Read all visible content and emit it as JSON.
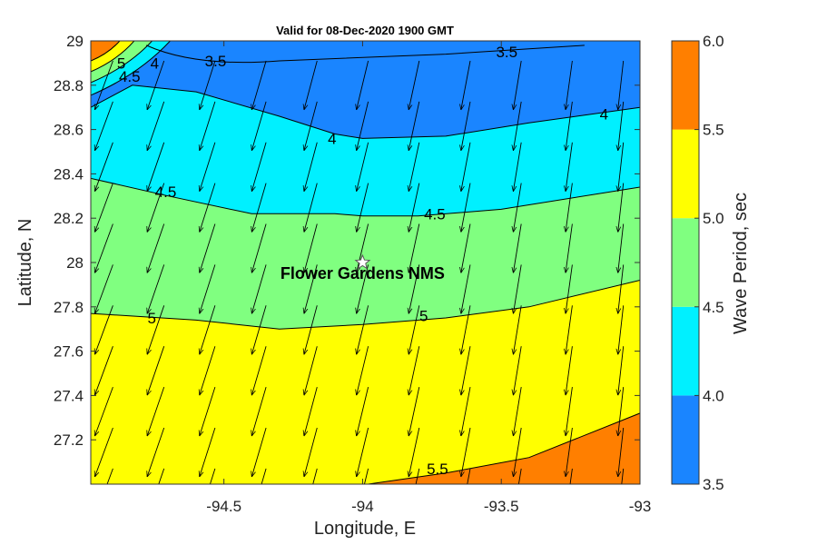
{
  "chart_data": {
    "type": "contour",
    "title": "Valid for 08-Dec-2020 1900 GMT",
    "xlabel": "Longitude, E",
    "ylabel": "Latitude, N",
    "xlim": [
      -94.98,
      -93.0
    ],
    "ylim": [
      27.0,
      29.0
    ],
    "x_ticks": [
      -94.5,
      -94,
      -93.5,
      -93
    ],
    "y_ticks": [
      27.2,
      27.4,
      27.6,
      27.8,
      28,
      28.2,
      28.4,
      28.6,
      28.8,
      29
    ],
    "x_tick_labels": [
      "-94.5",
      "-94",
      "-93.5",
      "-93"
    ],
    "y_tick_labels": [
      "27.2",
      "27.4",
      "27.6",
      "27.8",
      "28",
      "28.2",
      "28.4",
      "28.6",
      "28.8",
      "29"
    ],
    "colorbar": {
      "label": "Wave Period, sec",
      "levels": [
        3.5,
        4.0,
        4.5,
        5.0,
        5.5,
        6.0
      ],
      "tick_labels": [
        "3.5",
        "4.0",
        "4.5",
        "5.0",
        "5.5",
        "6.0"
      ],
      "colors": [
        "#1a85ff",
        "#00f0ff",
        "#80ff80",
        "#ffff00",
        "#ff7f00"
      ]
    },
    "contours": [
      {
        "level": 4.0,
        "lon": [
          -94.98,
          -94.83,
          -94.6,
          -94.3,
          -94.1,
          -94.0,
          -93.7,
          -93.4,
          -93.0
        ],
        "lat": [
          28.7,
          28.8,
          28.77,
          28.66,
          28.58,
          28.56,
          28.57,
          28.63,
          28.7
        ]
      },
      {
        "level": 4.5,
        "lon": [
          -94.98,
          -94.7,
          -94.4,
          -94.1,
          -94.0,
          -93.8,
          -93.5,
          -93.0
        ],
        "lat": [
          28.38,
          28.3,
          28.22,
          28.22,
          28.21,
          28.21,
          28.24,
          28.34
        ]
      },
      {
        "level": 5.0,
        "lon": [
          -94.98,
          -94.6,
          -94.3,
          -94.0,
          -93.7,
          -93.4,
          -93.0
        ],
        "lat": [
          27.77,
          27.74,
          27.7,
          27.72,
          27.75,
          27.8,
          27.92
        ]
      },
      {
        "level": 5.5,
        "lon": [
          -93.98,
          -93.7,
          -93.4,
          -93.0
        ],
        "lat": [
          27.0,
          27.05,
          27.12,
          27.32
        ]
      }
    ],
    "contour_labels": [
      {
        "text": "3.5",
        "lon": -94.53,
        "lat": 28.91
      },
      {
        "text": "3.5",
        "lon": -93.48,
        "lat": 28.95
      },
      {
        "text": "4",
        "lon": -94.11,
        "lat": 28.56
      },
      {
        "text": "4",
        "lon": -93.13,
        "lat": 28.67
      },
      {
        "text": "4.5",
        "lon": -94.71,
        "lat": 28.32
      },
      {
        "text": "4.5",
        "lon": -93.74,
        "lat": 28.22
      },
      {
        "text": "5",
        "lon": -94.76,
        "lat": 27.75
      },
      {
        "text": "5",
        "lon": -93.78,
        "lat": 27.76
      },
      {
        "text": "5.5",
        "lon": -93.73,
        "lat": 27.07
      },
      {
        "text": "4",
        "lon": -94.75,
        "lat": 28.9
      },
      {
        "text": "4.5",
        "lon": -94.84,
        "lat": 28.84
      },
      {
        "text": "5",
        "lon": -94.87,
        "lat": 28.9
      }
    ],
    "vectors": {
      "lon_start": -94.9,
      "lon_step": 0.184,
      "count_lon": 11,
      "lat_start": 28.91,
      "lat_step": -0.184,
      "count_lat": 11,
      "direction": "toward south-southwest"
    },
    "site": {
      "name": "Flower Gardens NMS",
      "lon": -94.0,
      "lat": 28.0,
      "marker": "star"
    }
  }
}
